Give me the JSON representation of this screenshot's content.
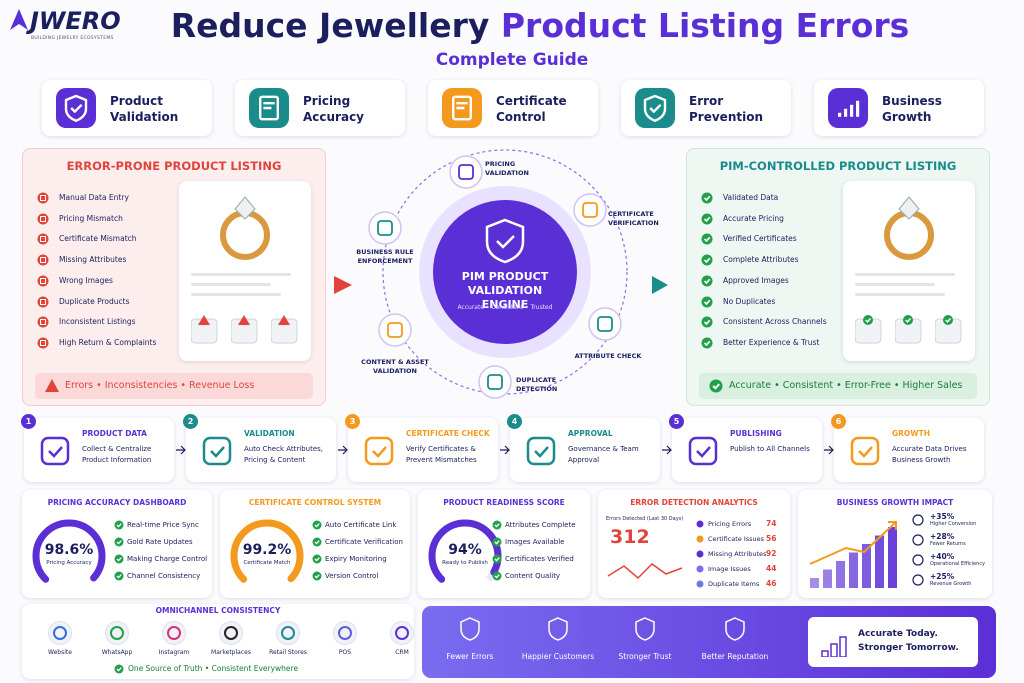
{
  "header": {
    "brand": "JWERO",
    "tagline": "BUILDING JEWELRY ECOSYSTEMS",
    "title_start": "Reduce Jewellery",
    "title_highlight": "Product Listing Errors",
    "subtitle": "Complete Guide"
  },
  "pillars": [
    "Product Validation",
    "Pricing Accuracy",
    "Certificate Control",
    "Error Prevention",
    "Business Growth"
  ],
  "error_listing": {
    "title": "ERROR-PRONE PRODUCT LISTING",
    "items": [
      "Manual Data Entry",
      "Pricing Mismatch",
      "Certificate Mismatch",
      "Missing Attributes",
      "Wrong Images",
      "Duplicate Products",
      "Inconsistent Listings",
      "High Return & Complaints"
    ],
    "footer": "Errors • Inconsistencies • Revenue Loss"
  },
  "engine": {
    "title": "PIM PRODUCT VALIDATION ENGINE",
    "tagline": "Accurate • Consistent • Trusted",
    "stages": [
      "PRICING VALIDATION",
      "CERTIFICATE VERIFICATION",
      "ATTRIBUTE CHECK",
      "DUPLICATE DETECTION",
      "CONTENT & ASSET VALIDATION",
      "BUSINESS RULE ENFORCEMENT"
    ]
  },
  "pim_listing": {
    "title": "PIM-CONTROLLED PRODUCT LISTING",
    "items": [
      "Validated Data",
      "Accurate Pricing",
      "Verified Certificates",
      "Complete Attributes",
      "Approved Images",
      "No Duplicates",
      "Consistent Across Channels",
      "Better Experience & Trust"
    ],
    "footer": "Accurate • Consistent • Error-Free • Higher Sales"
  },
  "workflow": [
    {
      "step": 1,
      "title": "PRODUCT DATA",
      "text": "Collect & Centralize Product Information"
    },
    {
      "step": 2,
      "title": "VALIDATION",
      "text": "Auto Check Attributes, Pricing & Content"
    },
    {
      "step": 3,
      "title": "CERTIFICATE CHECK",
      "text": "Verify Certificates & Prevent Mismatches"
    },
    {
      "step": 4,
      "title": "APPROVAL",
      "text": "Governance & Team Approval"
    },
    {
      "step": 5,
      "title": "PUBLISHING",
      "text": "Publish to All Channels"
    },
    {
      "step": 6,
      "title": "GROWTH",
      "text": "Accurate Data Drives Business Growth"
    }
  ],
  "gauges": [
    {
      "title": "PRICING ACCURACY DASHBOARD",
      "score": 98.6,
      "score_label": "98.6%",
      "caption": "Pricing Accuracy",
      "items": [
        "Real-time Price Sync",
        "Gold Rate Updates",
        "Making Charge Control",
        "Channel Consistency"
      ]
    },
    {
      "title": "CERTIFICATE CONTROL SYSTEM",
      "score": 99.2,
      "score_label": "99.2%",
      "caption": "Certificate Match",
      "items": [
        "Auto Certificate Link",
        "Certificate Verification",
        "Expiry Monitoring",
        "Version Control"
      ]
    },
    {
      "title": "PRODUCT READINESS SCORE",
      "score": 94,
      "score_label": "94%",
      "caption": "Ready to Publish",
      "items": [
        "Attributes Complete",
        "Images Available",
        "Certificates Verified",
        "Content Quality"
      ]
    }
  ],
  "error_analytics": {
    "title": "ERROR DETECTION ANALYTICS",
    "caption": "Errors Detected (Last 30 Days)",
    "total": 312,
    "items": [
      {
        "name": "Pricing Errors",
        "count": 74
      },
      {
        "name": "Certificate Issues",
        "count": 56
      },
      {
        "name": "Missing Attributes",
        "count": 92
      },
      {
        "name": "Image Issues",
        "count": 44
      },
      {
        "name": "Duplicate Items",
        "count": 46
      }
    ]
  },
  "growth": {
    "title": "BUSINESS GROWTH IMPACT",
    "metrics": [
      {
        "value": "+35%",
        "label": "Higher Conversion"
      },
      {
        "value": "+28%",
        "label": "Fewer Returns"
      },
      {
        "value": "+40%",
        "label": "Operational Efficiency"
      },
      {
        "value": "+25%",
        "label": "Revenue Growth"
      }
    ]
  },
  "omnichannel": {
    "title": "OMNICHANNEL CONSISTENCY",
    "channels": [
      "Website",
      "WhatsApp",
      "Instagram",
      "Marketplaces",
      "Retail Stores",
      "POS",
      "CRM"
    ],
    "footer": "One Source of Truth • Consistent Everywhere"
  },
  "benefits": {
    "items": [
      "Fewer Errors",
      "Happier Customers",
      "Stronger Trust",
      "Better Reputation"
    ],
    "callout": [
      "Accurate Today.",
      "Stronger Tomorrow."
    ]
  }
}
